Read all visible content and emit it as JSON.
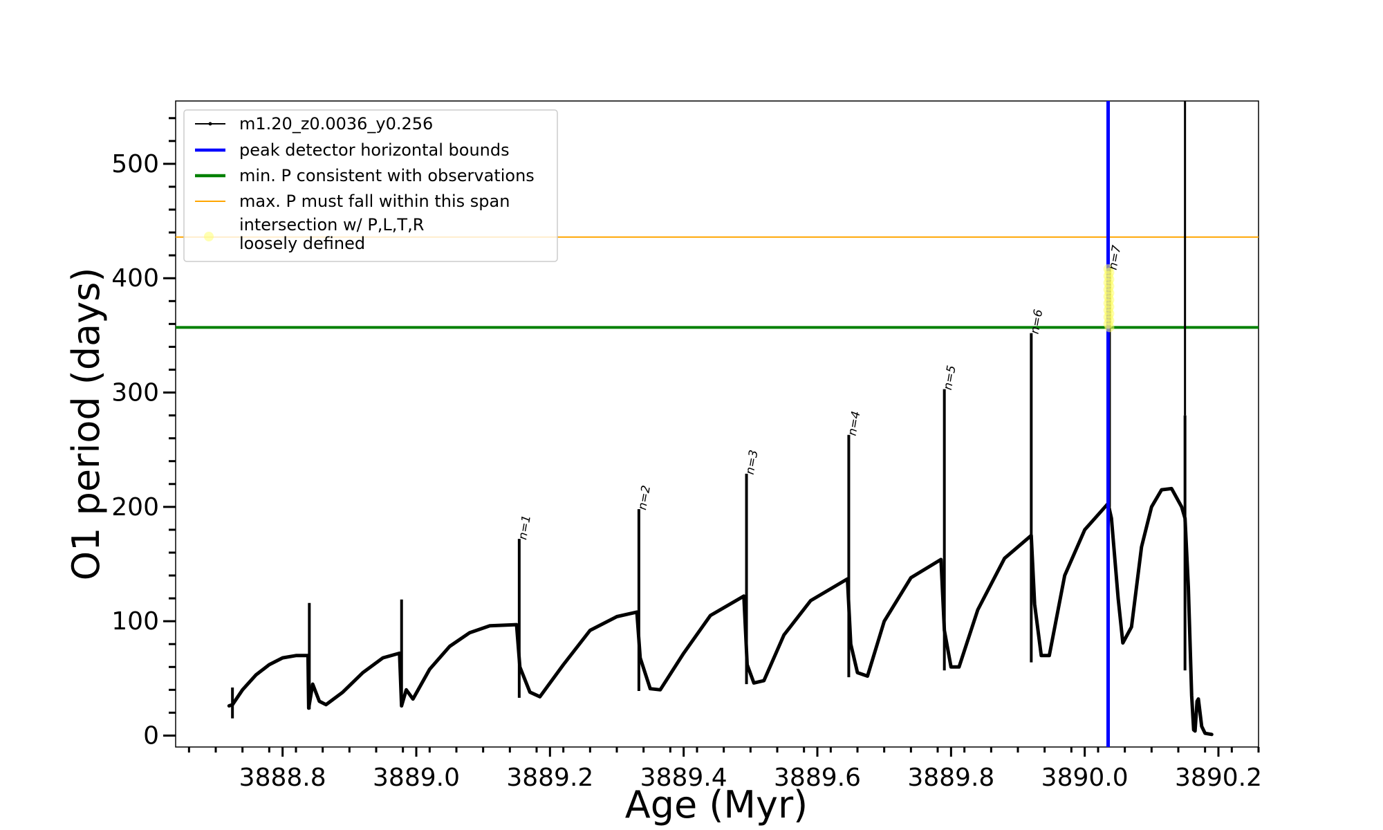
{
  "chart_data": {
    "type": "line",
    "xlabel": "Age (Myr)",
    "ylabel": "O1 period (days)",
    "xlim": [
      3888.64,
      3890.26
    ],
    "ylim": [
      -10,
      555
    ],
    "grid": false,
    "legend_position": "top-left",
    "xticks": {
      "major": [
        3888.8,
        3889.0,
        3889.2,
        3889.4,
        3889.6,
        3889.8,
        3890.0,
        3890.2
      ],
      "labels": [
        "3888.8",
        "3889.0",
        "3889.2",
        "3889.4",
        "3889.6",
        "3889.8",
        "3890.0",
        "3890.2"
      ]
    },
    "yticks": {
      "major": [
        0,
        100,
        200,
        300,
        400,
        500
      ],
      "labels": [
        "0",
        "100",
        "200",
        "300",
        "400",
        "500"
      ]
    },
    "series": [
      {
        "name": "m1.20_z0.0036_y0.256",
        "color": "#000000",
        "x": [
          3888.72,
          3888.725,
          3888.74,
          3888.76,
          3888.78,
          3888.8,
          3888.82,
          3888.838,
          3888.839,
          3888.845,
          3888.855,
          3888.865,
          3888.89,
          3888.92,
          3888.95,
          3888.975,
          3888.978,
          3888.985,
          3888.995,
          3889.02,
          3889.05,
          3889.08,
          3889.11,
          3889.15,
          3889.155,
          3889.17,
          3889.185,
          3889.22,
          3889.26,
          3889.3,
          3889.33,
          3889.335,
          3889.35,
          3889.365,
          3889.4,
          3889.44,
          3889.49,
          3889.495,
          3889.505,
          3889.52,
          3889.55,
          3889.59,
          3889.645,
          3889.65,
          3889.66,
          3889.675,
          3889.7,
          3889.74,
          3889.785,
          3889.79,
          3889.8,
          3889.812,
          3889.84,
          3889.88,
          3889.92,
          3889.925,
          3889.935,
          3889.947,
          3889.97,
          3890.0,
          3890.035,
          3890.04,
          3890.05,
          3890.057,
          3890.07,
          3890.085,
          3890.1,
          3890.115,
          3890.13,
          3890.145,
          3890.15,
          3890.155,
          3890.16,
          3890.163,
          3890.165,
          3890.168,
          3890.17,
          3890.175,
          3890.18,
          3890.19
        ],
        "y": [
          26,
          27,
          40,
          53,
          62,
          68,
          70,
          70,
          24,
          45,
          30,
          27,
          38,
          55,
          68,
          72,
          26,
          40,
          32,
          58,
          78,
          90,
          96,
          97,
          60,
          38,
          34,
          62,
          92,
          104,
          108,
          68,
          41,
          40,
          72,
          105,
          122,
          62,
          46,
          48,
          88,
          118,
          137,
          80,
          55,
          52,
          100,
          138,
          154,
          92,
          60,
          60,
          110,
          155,
          175,
          115,
          70,
          70,
          140,
          180,
          203,
          190,
          120,
          81,
          95,
          165,
          200,
          215,
          216,
          200,
          190,
          130,
          35,
          5,
          4,
          30,
          32,
          8,
          2,
          1
        ]
      },
      {
        "name": "peak detector horizontal bounds",
        "color": "#0000ff",
        "x_values": [
          3890.035,
          3890.15
        ]
      },
      {
        "name": "min. P consistent with observations",
        "color": "#008000",
        "y_value": 357
      },
      {
        "name": "max. P must fall within this span",
        "color": "#ffa500",
        "y_value": 436
      },
      {
        "name": "intersection w/ P,L,T,R\nloosely defined",
        "color": "#ffff66",
        "x": 3890.037,
        "y_range": [
          357,
          408
        ]
      }
    ],
    "spikes": [
      {
        "x": 3888.725,
        "low": 15,
        "high": 42
      },
      {
        "x": 3888.84,
        "low": 23,
        "high": 116
      },
      {
        "x": 3888.978,
        "low": 25,
        "high": 119
      },
      {
        "x": 3889.154,
        "low": 33,
        "high": 172
      },
      {
        "x": 3889.333,
        "low": 39,
        "high": 198
      },
      {
        "x": 3889.494,
        "low": 45,
        "high": 229
      },
      {
        "x": 3889.647,
        "low": 51,
        "high": 263
      },
      {
        "x": 3889.79,
        "low": 57,
        "high": 303
      },
      {
        "x": 3889.92,
        "low": 64,
        "high": 352
      },
      {
        "x": 3890.037,
        "low": 200,
        "high": 410
      },
      {
        "x": 3890.15,
        "low": 57,
        "high": 280
      }
    ],
    "annotations": [
      {
        "text": "n=1",
        "x": 3889.154,
        "y": 172
      },
      {
        "text": "n=2",
        "x": 3889.333,
        "y": 198
      },
      {
        "text": "n=3",
        "x": 3889.494,
        "y": 229
      },
      {
        "text": "n=4",
        "x": 3889.647,
        "y": 263
      },
      {
        "text": "n=5",
        "x": 3889.79,
        "y": 303
      },
      {
        "text": "n=6",
        "x": 3889.92,
        "y": 352
      },
      {
        "text": "n=7",
        "x": 3890.037,
        "y": 408
      }
    ]
  },
  "legend": [
    {
      "label": "m1.20_z0.0036_y0.256",
      "kind": "line-marker",
      "color": "#000000"
    },
    {
      "label": "peak detector horizontal bounds",
      "kind": "thick-line",
      "color": "#0000ff"
    },
    {
      "label": "min. P consistent with observations",
      "kind": "thick-line",
      "color": "#008000"
    },
    {
      "label": "max. P must fall within this span",
      "kind": "thin-line",
      "color": "#ffa500"
    },
    {
      "label": "intersection w/ P,L,T,R\nloosely defined",
      "kind": "circle",
      "color": "#ffff66"
    }
  ]
}
